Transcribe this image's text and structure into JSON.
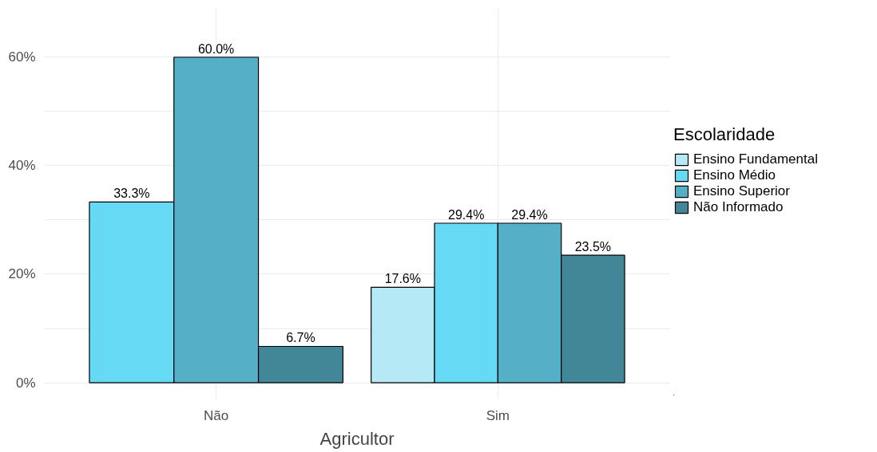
{
  "chart_data": {
    "type": "bar",
    "xlabel": "Agricultor",
    "legend_title": "Escolaridade",
    "categories": [
      "Não",
      "Sim"
    ],
    "series": [
      {
        "name": "Ensino Fundamental",
        "color": "#b5e9f6",
        "values": [
          null,
          17.6
        ],
        "value_labels": [
          null,
          "17.6%"
        ]
      },
      {
        "name": "Ensino Médio",
        "color": "#66d9f4",
        "values": [
          33.3,
          29.4
        ],
        "value_labels": [
          "33.3%",
          "29.4%"
        ]
      },
      {
        "name": "Ensino Superior",
        "color": "#55b0c7",
        "values": [
          60.0,
          29.4
        ],
        "value_labels": [
          "60.0%",
          "29.4%"
        ]
      },
      {
        "name": "Não Informado",
        "color": "#428797",
        "values": [
          6.7,
          23.5
        ],
        "value_labels": [
          "6.7%",
          "23.5%"
        ]
      }
    ],
    "ylim": [
      -3,
      69
    ],
    "yticks": [
      {
        "value": 0,
        "label": "0%"
      },
      {
        "value": 10,
        "label": null
      },
      {
        "value": 20,
        "label": "20%"
      },
      {
        "value": 30,
        "label": null
      },
      {
        "value": 40,
        "label": "40%"
      },
      {
        "value": 50,
        "label": null
      },
      {
        "value": 60,
        "label": "60%"
      }
    ],
    "grid": true,
    "legend": "right"
  }
}
